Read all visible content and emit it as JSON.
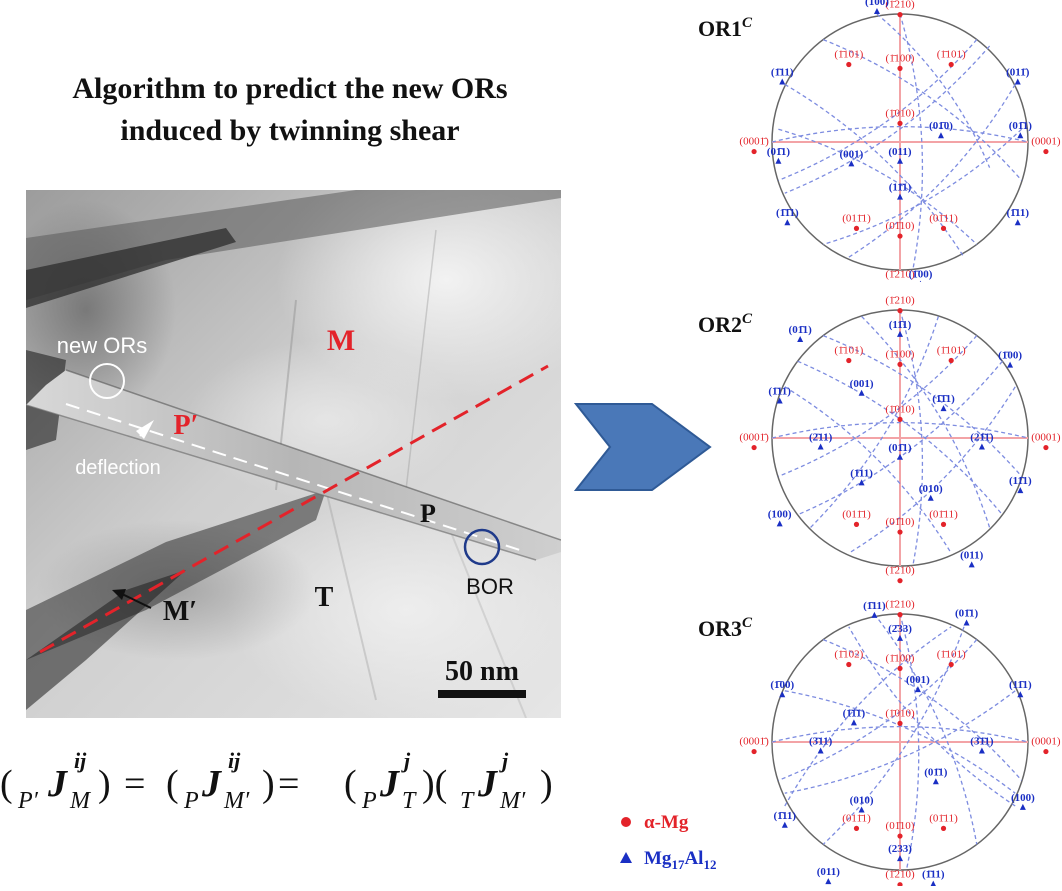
{
  "title": {
    "line1": "Algorithm to predict the new ORs",
    "line2": "induced by twinning shear"
  },
  "micrograph": {
    "label_new_ors": "new ORs",
    "label_p_prime": "P′",
    "label_m": "M",
    "label_deflection": "deflection",
    "label_p": "P",
    "label_bor": "BOR",
    "label_t": "T",
    "label_m_prime": "M′",
    "scale_bar": "50 nm"
  },
  "formula": {
    "sub_p_prime": "P′",
    "sub_p": "P",
    "sub_t": "T",
    "sym_j": "J",
    "sup_ij": "ij",
    "sup_j": "j",
    "sub_m": "M",
    "sub_m_prime": "M′",
    "eq": "="
  },
  "pole_figures": [
    {
      "name": "OR1",
      "sup": "C",
      "labels_red": [
        "(1̄210)",
        "(1̄101)",
        "(1̄100)",
        "(1̄101)",
        "(0001̄)",
        "(1̄010)",
        "(0001)",
        "(011̄1)",
        "(01̄10)",
        "(01̄11)",
        "(1̄210)"
      ],
      "labels_blue": [
        "(1̄00)",
        "(1̄11)",
        "(01̄1)",
        "(011̄)",
        "(001)",
        "(011)",
        "(01̄0)",
        "(01̄1)",
        "(1̄1̄1)",
        "(11̄1)",
        "(1̄11)",
        "(1̄00)"
      ]
    },
    {
      "name": "OR2",
      "sup": "C",
      "labels_red": [
        "(1̄210)",
        "(1̄101)",
        "(1̄100)",
        "(1̄101)",
        "(0001̄)",
        "(1̄010)",
        "(0001)",
        "(011̄1)",
        "(01̄10)",
        "(01̄11)",
        "(1̄210)"
      ],
      "labels_blue": [
        "(01̄1)",
        "(11̄1)",
        "(1̄00)",
        "(1̄11)",
        "(001)",
        "(1̄1̄1)",
        "(2̄11)",
        "(01̄1)",
        "(21̄1̄)",
        "(1̄11)",
        "(010)",
        "(100)",
        "(11̄1)",
        "(011)"
      ]
    },
    {
      "name": "OR3",
      "sup": "C",
      "labels_red": [
        "(1̄210)",
        "(1̄102)",
        "(1̄100)",
        "(1̄101)",
        "(0001̄)",
        "(1̄010)",
        "(0001)",
        "(011̄1)",
        "(01̄10)",
        "(01̄11)",
        "(1̄210)"
      ],
      "labels_blue": [
        "(1̄11)",
        "(2̄33)",
        "(01̄1)",
        "(1̄00)",
        "(1̄1̄1)",
        "(001)",
        "(11̄1)",
        "(3̄11)",
        "(3̄1̄1)",
        "(01̄1)",
        "(1̄11)",
        "(010)",
        "(100)",
        "(233)",
        "(011)",
        "(1̄11)"
      ]
    }
  ],
  "legend": {
    "alpha_mg": "α-Mg",
    "mg": "Mg",
    "sub17": "17",
    "al": "Al",
    "sub12": "12"
  },
  "colors": {
    "red": "#e3232a",
    "blue": "#1a2fc4",
    "arrow": "#4a78b8",
    "pink_line": "#f3a3a6",
    "blue_dash": "#7d8ce0"
  }
}
